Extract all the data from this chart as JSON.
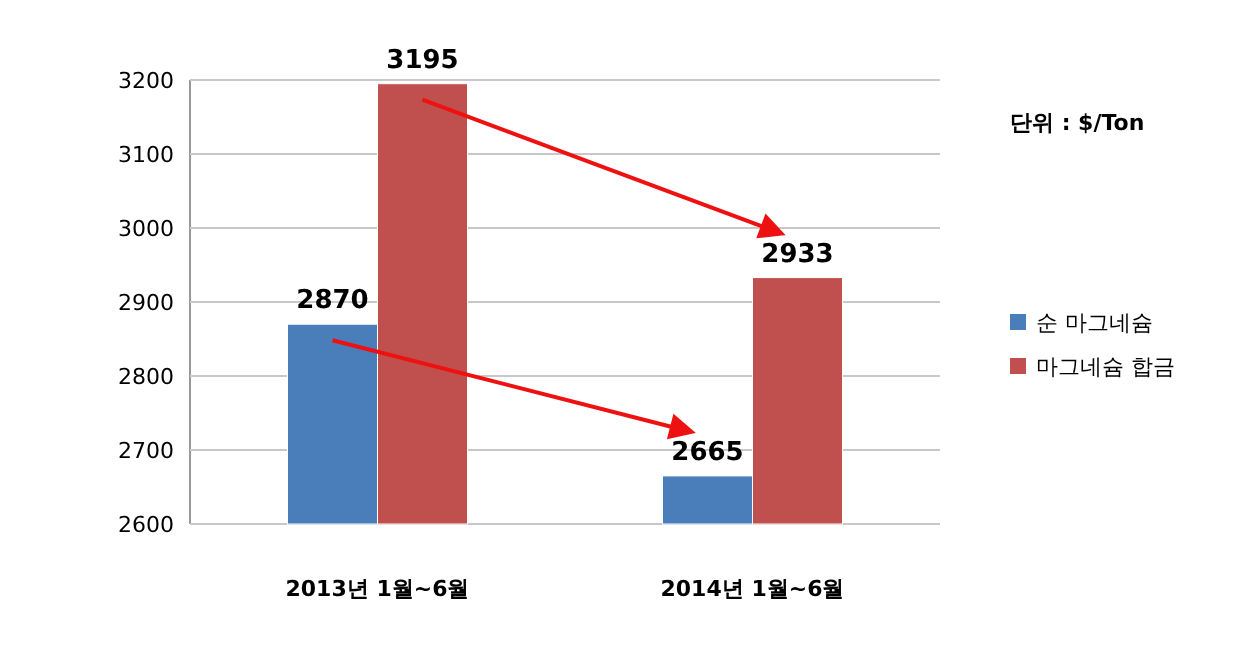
{
  "chart_data": {
    "type": "bar",
    "categories": [
      "2013년 1월~6월",
      "2014년 1월~6월"
    ],
    "series": [
      {
        "name": "순 마그네슘",
        "color": "#4a7ebb",
        "values": [
          2870,
          2665
        ]
      },
      {
        "name": "마그네슘 합금",
        "color": "#c0504d",
        "values": [
          3195,
          2933
        ]
      }
    ],
    "ylim": [
      2600,
      3200
    ],
    "yticks": [
      2600,
      2700,
      2800,
      2900,
      3000,
      3100,
      3200
    ],
    "grid": "y",
    "legend": "right",
    "data_labels": true,
    "annotations": [
      "단위 : $/Ton"
    ]
  }
}
